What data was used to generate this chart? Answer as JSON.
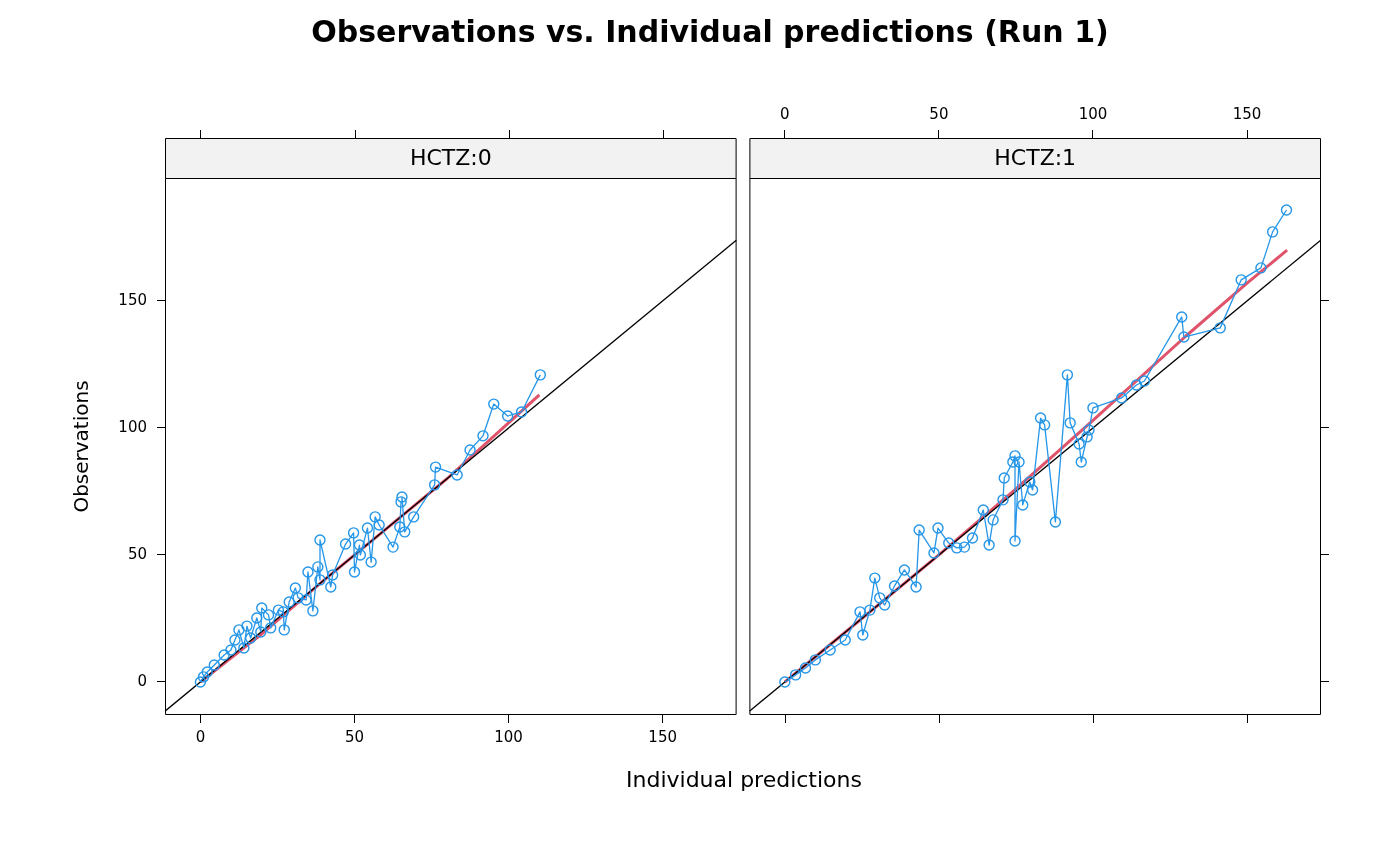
{
  "chart_data": [
    {
      "type": "line",
      "title": "Observations vs. Individual predictions (Run 1)",
      "subtitle": "HCTZ:0",
      "xlabel": "Individual predictions",
      "ylabel": "Observations",
      "xlim": [
        -11.5,
        174
      ],
      "xticks": [
        0,
        50,
        100,
        150
      ],
      "ylim": [
        -13,
        198.4
      ],
      "yticks": [
        0,
        50,
        100,
        150
      ],
      "grid": false,
      "legend": false,
      "series": [
        {
          "type": "line",
          "marker": "circle",
          "color": "#2596e8",
          "x": [
            0,
            1.0,
            2.2,
            4.5,
            7.7,
            9.9,
            11.2,
            12.5,
            14.1,
            15.1,
            16.3,
            18.3,
            19.6,
            19.9,
            22.1,
            22.8,
            25.3,
            26.9,
            27.2,
            28.8,
            30.8,
            31.7,
            34.3,
            34.9,
            36.5,
            38.1,
            38.8,
            38.8,
            42.3,
            42.9,
            47.1,
            49.7,
            50.0,
            51.6,
            51.9,
            54.2,
            55.4,
            56.7,
            58.0,
            62.5,
            64.7,
            65.1,
            65.4,
            66.3,
            69.2,
            76.0,
            76.3,
            83.3,
            87.5,
            91.7,
            95.2,
            99.7,
            104.2,
            110.3
          ],
          "values": [
            0,
            2.0,
            3.9,
            6.7,
            10.6,
            12.6,
            16.5,
            20.5,
            13.4,
            22.0,
            17.3,
            25.2,
            19.7,
            29.1,
            26.4,
            21.3,
            28.3,
            27.6,
            20.5,
            31.5,
            37.0,
            33.1,
            32.3,
            43.3,
            28.0,
            45.3,
            40.2,
            55.9,
            37.4,
            42.1,
            54.3,
            58.7,
            43.3,
            53.9,
            50.0,
            60.6,
            47.2,
            65.0,
            61.8,
            53.1,
            61.0,
            70.9,
            72.8,
            59.1,
            65.0,
            77.6,
            84.6,
            81.5,
            91.3,
            96.9,
            109.4,
            104.7,
            106.3,
            120.9
          ]
        },
        {
          "type": "line",
          "marker": "none",
          "color": "#000000",
          "x": [
            -11.5,
            174
          ],
          "values": [
            -11.5,
            174
          ]
        },
        {
          "type": "line",
          "marker": "none",
          "color": "#df536b",
          "x": [
            0,
            20,
            40,
            60,
            80,
            100,
            110
          ],
          "values": [
            0,
            19,
            40,
            60,
            80,
            102,
            113
          ]
        }
      ]
    },
    {
      "type": "line",
      "subtitle": "HCTZ:1",
      "xlim": [
        -11.5,
        174
      ],
      "xticks": [
        0,
        50,
        100,
        150
      ],
      "ylim": [
        -13,
        198.4
      ],
      "yticks": [
        {
          "value": 0,
          "label": null
        },
        {
          "value": 50,
          "label": null
        },
        {
          "value": 100,
          "label": null
        },
        {
          "value": 150,
          "label": null
        }
      ],
      "tick_labels": "x",
      "grid": false,
      "legend": false,
      "series": [
        {
          "type": "line",
          "marker": "circle",
          "color": "#2596e8",
          "x": [
            0,
            3.5,
            6.7,
            9.9,
            14.7,
            19.6,
            24.4,
            25.3,
            27.6,
            29.2,
            30.8,
            32.4,
            35.6,
            38.8,
            42.6,
            43.6,
            48.4,
            49.7,
            53.2,
            55.8,
            58.3,
            60.9,
            64.4,
            66.3,
            67.6,
            70.8,
            71.2,
            74.0,
            74.7,
            74.7,
            76.0,
            77.2,
            79.5,
            80.4,
            83.0,
            84.3,
            87.8,
            91.7,
            92.6,
            95.5,
            96.2,
            98.1,
            98.7,
            100.0,
            109.3,
            114.1,
            116.7,
            128.8,
            129.5,
            141.3,
            148.1,
            154.5,
            158.3,
            162.8
          ],
          "values": [
            0,
            2.8,
            5.5,
            8.7,
            12.6,
            16.5,
            27.6,
            18.5,
            28.3,
            40.9,
            33.1,
            30.3,
            37.8,
            44.1,
            37.4,
            59.8,
            50.8,
            60.6,
            54.7,
            52.8,
            53.1,
            56.7,
            67.7,
            53.9,
            63.8,
            71.7,
            80.3,
            86.6,
            89.0,
            55.5,
            86.6,
            69.7,
            78.7,
            75.6,
            103.9,
            101.2,
            63.0,
            120.9,
            102.0,
            93.7,
            86.6,
            96.5,
            99.2,
            107.9,
            111.8,
            116.9,
            118.5,
            143.7,
            135.8,
            139.4,
            158.3,
            163.0,
            177.2,
            185.8
          ]
        },
        {
          "type": "line",
          "marker": "none",
          "color": "#000000",
          "x": [
            -11.5,
            174
          ],
          "values": [
            -11.5,
            174
          ]
        },
        {
          "type": "line",
          "marker": "none",
          "color": "#df536b",
          "x": [
            0,
            25,
            50,
            75,
            100,
            130,
            150,
            163
          ],
          "values": [
            0,
            25,
            50,
            76,
            103,
            136,
            157,
            170
          ]
        }
      ]
    }
  ]
}
